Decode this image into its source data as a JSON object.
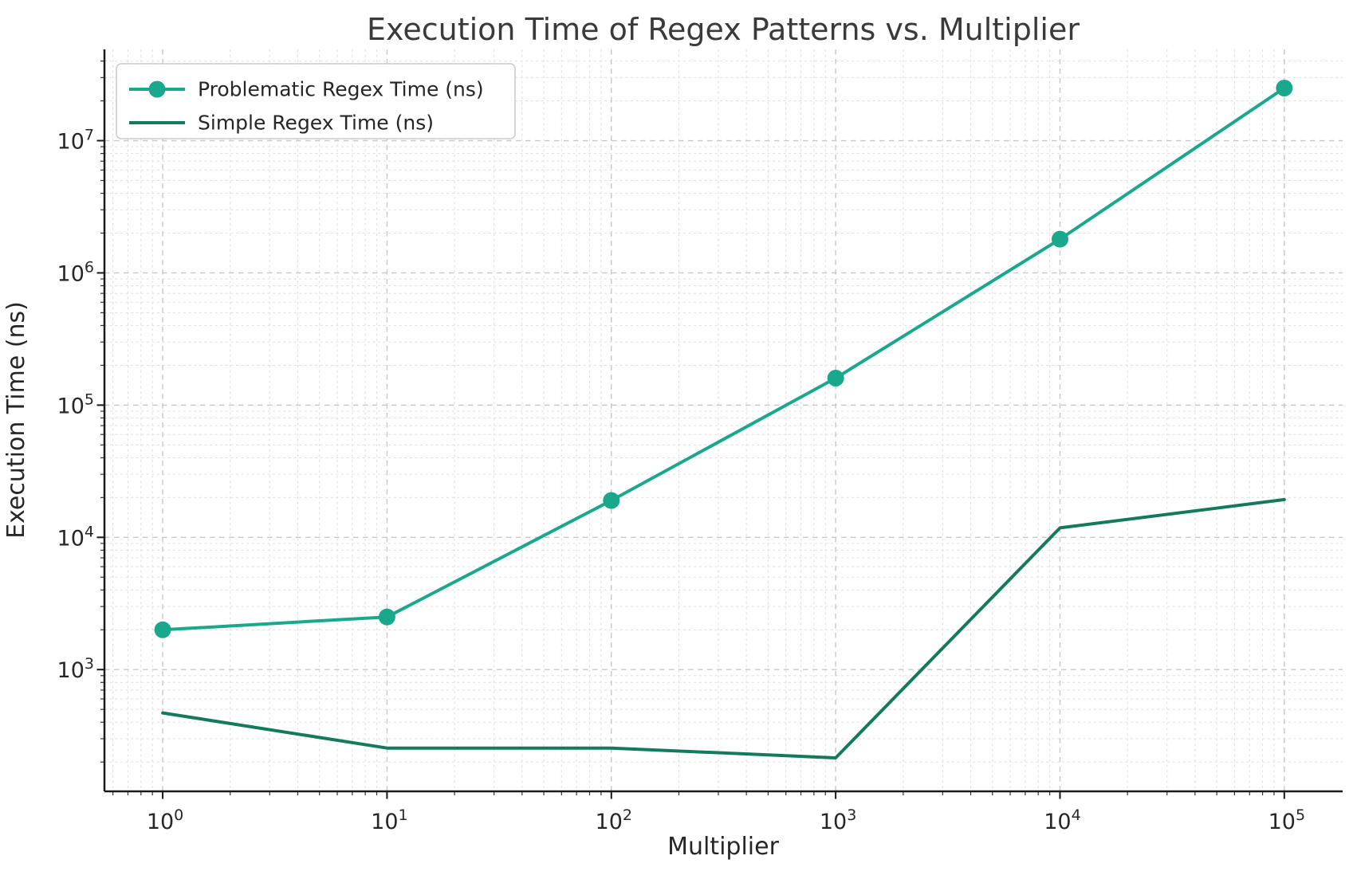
{
  "chart_data": {
    "type": "line",
    "title": "Execution Time of Regex Patterns vs. Multiplier",
    "xlabel": "Multiplier",
    "ylabel": "Execution Time (ns)",
    "x_scale": "log",
    "y_scale": "log",
    "x": [
      1,
      10,
      100,
      1000,
      10000,
      100000
    ],
    "series": [
      {
        "name": "Problematic Regex Time (ns)",
        "color": "#1aa88c",
        "marker": "circle",
        "values": [
          2000,
          2500,
          19000,
          160000,
          1800000,
          25000000
        ]
      },
      {
        "name": "Simple Regex Time (ns)",
        "color": "#147a5e",
        "marker": "none",
        "values": [
          470,
          255,
          255,
          215,
          11800,
          19300
        ]
      }
    ],
    "xlim": [
      0.55,
      182000
    ],
    "ylim": [
      120,
      49000000
    ],
    "x_tick_exponents": [
      0,
      1,
      2,
      3,
      4,
      5
    ],
    "y_tick_exponents": [
      3,
      4,
      5,
      6,
      7
    ],
    "grid": "major-and-minor-dashed",
    "legend_position": "upper-left"
  },
  "colors": {
    "title_text": "#3a3a3a",
    "tick_text": "#262626",
    "axis_spine": "#1a1a1a",
    "grid_major": "#c7c7c7",
    "grid_minor": "#e1e1e1",
    "legend_border": "#cccccc",
    "background": "#ffffff"
  }
}
